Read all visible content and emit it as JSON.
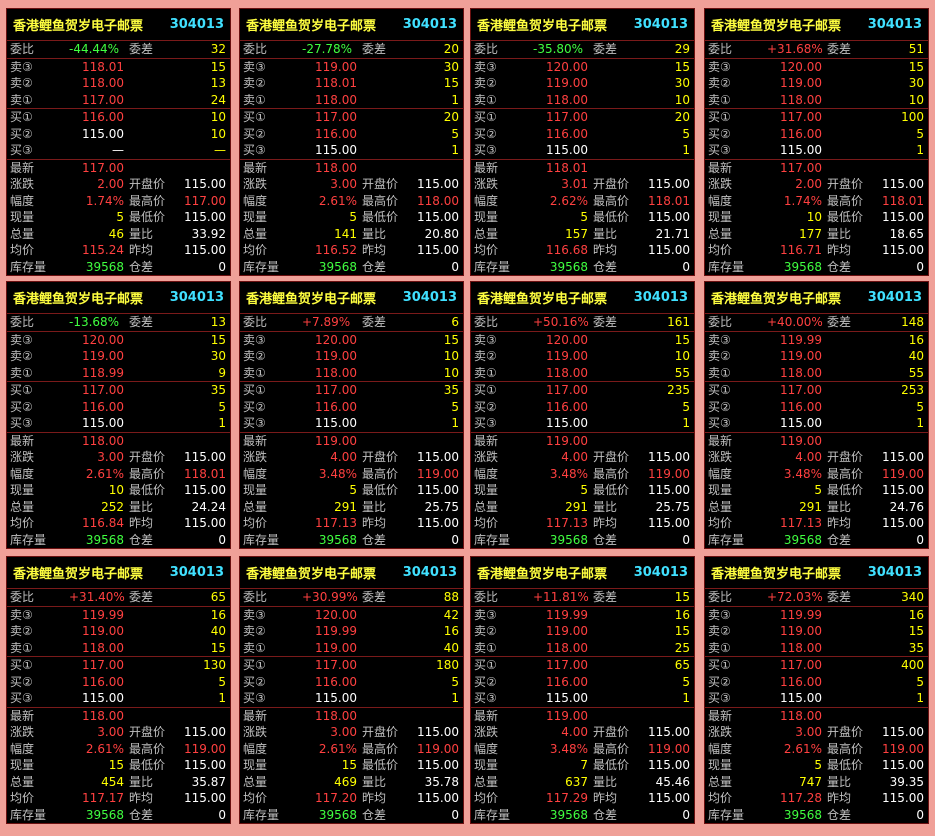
{
  "title": "香港鲤鱼贺岁电子邮票",
  "code": "304013",
  "labels": {
    "wb": "委比",
    "wc": "委差",
    "s3": "卖③",
    "s2": "卖②",
    "s1": "卖①",
    "b1": "买①",
    "b2": "买②",
    "b3": "买③",
    "last": "最新",
    "chg": "涨跌",
    "pct": "幅度",
    "cur": "现量",
    "tot": "总量",
    "avg": "均价",
    "stock": "库存量",
    "open": "开盘价",
    "high": "最高价",
    "low": "最低价",
    "ratio": "量比",
    "prev": "昨均",
    "pos": "仓差"
  },
  "panels": [
    {
      "wb": "-44.44%",
      "wb_dir": "neg",
      "wc": "32",
      "s3": [
        "118.01",
        "15"
      ],
      "s2": [
        "118.00",
        "13"
      ],
      "s1": [
        "117.00",
        "24"
      ],
      "b1": [
        "116.00",
        "10"
      ],
      "b2": [
        "115.00",
        "10"
      ],
      "b3": [
        "—",
        "—"
      ],
      "last": "117.00",
      "chg": "2.00",
      "pct": "1.74%",
      "cur": "5",
      "tot": "46",
      "avg": "115.24",
      "stock": "39568",
      "open": "115.00",
      "high": "117.00",
      "low": "115.00",
      "ratio": "33.92",
      "prev": "115.00",
      "pos": "0"
    },
    {
      "wb": "-27.78%",
      "wb_dir": "neg",
      "wc": "20",
      "s3": [
        "119.00",
        "30"
      ],
      "s2": [
        "118.01",
        "15"
      ],
      "s1": [
        "118.00",
        "1"
      ],
      "b1": [
        "117.00",
        "20"
      ],
      "b2": [
        "116.00",
        "5"
      ],
      "b3": [
        "115.00",
        "1"
      ],
      "last": "118.00",
      "chg": "3.00",
      "pct": "2.61%",
      "cur": "5",
      "tot": "141",
      "avg": "116.52",
      "stock": "39568",
      "open": "115.00",
      "high": "118.00",
      "low": "115.00",
      "ratio": "20.80",
      "prev": "115.00",
      "pos": "0"
    },
    {
      "wb": "-35.80%",
      "wb_dir": "neg",
      "wc": "29",
      "s3": [
        "120.00",
        "15"
      ],
      "s2": [
        "119.00",
        "30"
      ],
      "s1": [
        "118.00",
        "10"
      ],
      "b1": [
        "117.00",
        "20"
      ],
      "b2": [
        "116.00",
        "5"
      ],
      "b3": [
        "115.00",
        "1"
      ],
      "last": "118.01",
      "chg": "3.01",
      "pct": "2.62%",
      "cur": "5",
      "tot": "157",
      "avg": "116.68",
      "stock": "39568",
      "open": "115.00",
      "high": "118.01",
      "low": "115.00",
      "ratio": "21.71",
      "prev": "115.00",
      "pos": "0"
    },
    {
      "wb": "+31.68%",
      "wb_dir": "pos",
      "wc": "51",
      "s3": [
        "120.00",
        "15"
      ],
      "s2": [
        "119.00",
        "30"
      ],
      "s1": [
        "118.00",
        "10"
      ],
      "b1": [
        "117.00",
        "100"
      ],
      "b2": [
        "116.00",
        "5"
      ],
      "b3": [
        "115.00",
        "1"
      ],
      "last": "117.00",
      "chg": "2.00",
      "pct": "1.74%",
      "cur": "10",
      "tot": "177",
      "avg": "116.71",
      "stock": "39568",
      "open": "115.00",
      "high": "118.01",
      "low": "115.00",
      "ratio": "18.65",
      "prev": "115.00",
      "pos": "0"
    },
    {
      "wb": "-13.68%",
      "wb_dir": "neg",
      "wc": "13",
      "s3": [
        "120.00",
        "15"
      ],
      "s2": [
        "119.00",
        "30"
      ],
      "s1": [
        "118.99",
        "9"
      ],
      "b1": [
        "117.00",
        "35"
      ],
      "b2": [
        "116.00",
        "5"
      ],
      "b3": [
        "115.00",
        "1"
      ],
      "last": "118.00",
      "chg": "3.00",
      "pct": "2.61%",
      "cur": "10",
      "tot": "252",
      "avg": "116.84",
      "stock": "39568",
      "open": "115.00",
      "high": "118.01",
      "low": "115.00",
      "ratio": "24.24",
      "prev": "115.00",
      "pos": "0"
    },
    {
      "wb": "+7.89%",
      "wb_dir": "pos",
      "wc": "6",
      "s3": [
        "120.00",
        "15"
      ],
      "s2": [
        "119.00",
        "10"
      ],
      "s1": [
        "118.00",
        "10"
      ],
      "b1": [
        "117.00",
        "35"
      ],
      "b2": [
        "116.00",
        "5"
      ],
      "b3": [
        "115.00",
        "1"
      ],
      "last": "119.00",
      "chg": "4.00",
      "pct": "3.48%",
      "cur": "5",
      "tot": "291",
      "avg": "117.13",
      "stock": "39568",
      "open": "115.00",
      "high": "119.00",
      "low": "115.00",
      "ratio": "25.75",
      "prev": "115.00",
      "pos": "0"
    },
    {
      "wb": "+50.16%",
      "wb_dir": "pos",
      "wc": "161",
      "s3": [
        "120.00",
        "15"
      ],
      "s2": [
        "119.00",
        "10"
      ],
      "s1": [
        "118.00",
        "55"
      ],
      "b1": [
        "117.00",
        "235"
      ],
      "b2": [
        "116.00",
        "5"
      ],
      "b3": [
        "115.00",
        "1"
      ],
      "last": "119.00",
      "chg": "4.00",
      "pct": "3.48%",
      "cur": "5",
      "tot": "291",
      "avg": "117.13",
      "stock": "39568",
      "open": "115.00",
      "high": "119.00",
      "low": "115.00",
      "ratio": "25.75",
      "prev": "115.00",
      "pos": "0"
    },
    {
      "wb": "+40.00%",
      "wb_dir": "pos",
      "wc": "148",
      "s3": [
        "119.99",
        "16"
      ],
      "s2": [
        "119.00",
        "40"
      ],
      "s1": [
        "118.00",
        "55"
      ],
      "b1": [
        "117.00",
        "253"
      ],
      "b2": [
        "116.00",
        "5"
      ],
      "b3": [
        "115.00",
        "1"
      ],
      "last": "119.00",
      "chg": "4.00",
      "pct": "3.48%",
      "cur": "5",
      "tot": "291",
      "avg": "117.13",
      "stock": "39568",
      "open": "115.00",
      "high": "119.00",
      "low": "115.00",
      "ratio": "24.76",
      "prev": "115.00",
      "pos": "0"
    },
    {
      "wb": "+31.40%",
      "wb_dir": "pos",
      "wc": "65",
      "s3": [
        "119.99",
        "16"
      ],
      "s2": [
        "119.00",
        "40"
      ],
      "s1": [
        "118.00",
        "15"
      ],
      "b1": [
        "117.00",
        "130"
      ],
      "b2": [
        "116.00",
        "5"
      ],
      "b3": [
        "115.00",
        "1"
      ],
      "last": "118.00",
      "chg": "3.00",
      "pct": "2.61%",
      "cur": "15",
      "tot": "454",
      "avg": "117.17",
      "stock": "39568",
      "open": "115.00",
      "high": "119.00",
      "low": "115.00",
      "ratio": "35.87",
      "prev": "115.00",
      "pos": "0"
    },
    {
      "wb": "+30.99%",
      "wb_dir": "pos",
      "wc": "88",
      "s3": [
        "120.00",
        "42"
      ],
      "s2": [
        "119.99",
        "16"
      ],
      "s1": [
        "119.00",
        "40"
      ],
      "b1": [
        "117.00",
        "180"
      ],
      "b2": [
        "116.00",
        "5"
      ],
      "b3": [
        "115.00",
        "1"
      ],
      "last": "118.00",
      "chg": "3.00",
      "pct": "2.61%",
      "cur": "15",
      "tot": "469",
      "avg": "117.20",
      "stock": "39568",
      "open": "115.00",
      "high": "119.00",
      "low": "115.00",
      "ratio": "35.78",
      "prev": "115.00",
      "pos": "0"
    },
    {
      "wb": "+11.81%",
      "wb_dir": "pos",
      "wc": "15",
      "s3": [
        "119.99",
        "16"
      ],
      "s2": [
        "119.00",
        "15"
      ],
      "s1": [
        "118.00",
        "25"
      ],
      "b1": [
        "117.00",
        "65"
      ],
      "b2": [
        "116.00",
        "5"
      ],
      "b3": [
        "115.00",
        "1"
      ],
      "last": "119.00",
      "chg": "4.00",
      "pct": "3.48%",
      "cur": "7",
      "tot": "637",
      "avg": "117.29",
      "stock": "39568",
      "open": "115.00",
      "high": "119.00",
      "low": "115.00",
      "ratio": "45.46",
      "prev": "115.00",
      "pos": "0"
    },
    {
      "wb": "+72.03%",
      "wb_dir": "pos",
      "wc": "340",
      "s3": [
        "119.99",
        "16"
      ],
      "s2": [
        "119.00",
        "15"
      ],
      "s1": [
        "118.00",
        "35"
      ],
      "b1": [
        "117.00",
        "400"
      ],
      "b2": [
        "116.00",
        "5"
      ],
      "b3": [
        "115.00",
        "1"
      ],
      "last": "118.00",
      "chg": "3.00",
      "pct": "2.61%",
      "cur": "5",
      "tot": "747",
      "avg": "117.28",
      "stock": "39568",
      "open": "115.00",
      "high": "119.00",
      "low": "115.00",
      "ratio": "39.35",
      "prev": "115.00",
      "pos": "0"
    }
  ]
}
